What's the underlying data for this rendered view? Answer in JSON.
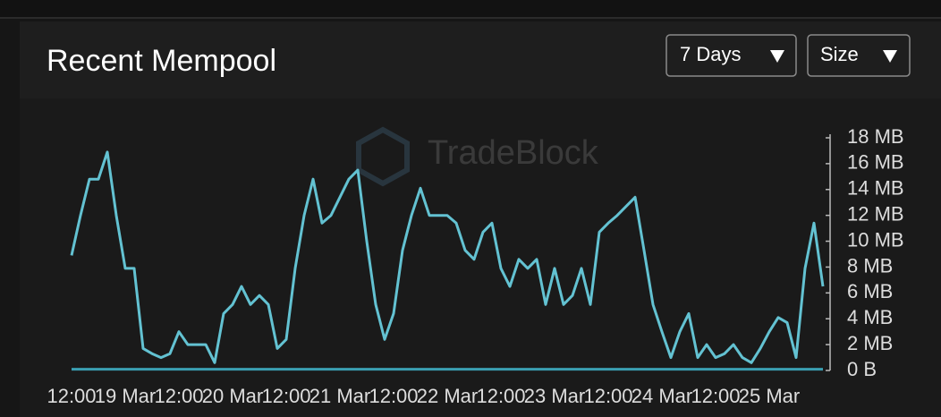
{
  "header": {
    "title": "Recent Mempool"
  },
  "controls": {
    "range": "7 Days",
    "metric": "Size"
  },
  "watermark": "TradeBlock",
  "chart_data": {
    "type": "line",
    "categories": [
      "12:00",
      null,
      null,
      null,
      null,
      null,
      "19 Mar",
      null,
      null,
      null,
      null,
      null,
      "12:00",
      null,
      null,
      null,
      null,
      null,
      "20 Mar",
      null,
      null,
      null,
      null,
      null,
      "12:00",
      null,
      null,
      null,
      null,
      null,
      "21 Mar",
      null,
      null,
      null,
      null,
      null,
      "12:00",
      null,
      null,
      null,
      null,
      null,
      "22 Mar",
      null,
      null,
      null,
      null,
      null,
      "12:00",
      null,
      null,
      null,
      null,
      null,
      "23 Mar",
      null,
      null,
      null,
      null,
      null,
      "12:00",
      null,
      null,
      null,
      null,
      null,
      "24 Mar",
      null,
      null,
      null,
      null,
      null,
      "12:00",
      null,
      null,
      null,
      null,
      null,
      "25 Mar",
      null,
      null,
      null,
      null,
      null,
      null
    ],
    "series": [
      {
        "color": "#63c2d2",
        "values": [
          8.9,
          12,
          14.8,
          14.8,
          16.9,
          12,
          7.9,
          7.9,
          1.7,
          1.3,
          1,
          1.3,
          3,
          2,
          2,
          2,
          0.6,
          4.4,
          5.1,
          6.5,
          5.1,
          5.8,
          5.1,
          1.7,
          2.4,
          7.9,
          12,
          14.8,
          11.4,
          12,
          13.4,
          14.8,
          15.5,
          10,
          5.1,
          2.4,
          4.4,
          9.3,
          12,
          14.1,
          12,
          12,
          12,
          11.4,
          9.3,
          8.6,
          10.7,
          11.4,
          7.9,
          6.5,
          8.6,
          7.9,
          8.6,
          5.1,
          7.9,
          5.1,
          5.8,
          7.9,
          5.1,
          10.7,
          11.4,
          12,
          12.7,
          13.4,
          9.3,
          5.1,
          3,
          1,
          3,
          4.4,
          1,
          2,
          1,
          1.3,
          2,
          1,
          0.6,
          1.7,
          3,
          4.1,
          3.7,
          1,
          7.9,
          11.4,
          6.5
        ]
      },
      {
        "color": "#3a9fb2",
        "values": [
          0.1,
          0.1,
          0.1,
          0.1,
          0.1,
          0.1,
          0.1,
          0.1,
          0.1,
          0.1,
          0.1,
          0.1,
          0.1,
          0.1,
          0.1,
          0.1,
          0.1,
          0.1,
          0.1,
          0.1,
          0.1,
          0.1,
          0.1,
          0.1,
          0.1,
          0.1,
          0.1,
          0.1,
          0.1,
          0.1,
          0.1,
          0.1,
          0.1,
          0.1,
          0.1,
          0.1,
          0.1,
          0.1,
          0.1,
          0.1,
          0.1,
          0.1,
          0.1,
          0.1,
          0.1,
          0.1,
          0.1,
          0.1,
          0.1,
          0.1,
          0.1,
          0.1,
          0.1,
          0.1,
          0.1,
          0.1,
          0.1,
          0.1,
          0.1,
          0.1,
          0.1,
          0.1,
          0.1,
          0.1,
          0.1,
          0.1,
          0.1,
          0.1,
          0.1,
          0.1,
          0.1,
          0.1,
          0.1,
          0.1,
          0.1,
          0.1,
          0.1,
          0.1,
          0.1,
          0.1,
          0.1,
          0.1,
          0.1,
          0.1,
          0.1
        ]
      }
    ],
    "ylim": [
      0,
      18
    ],
    "yticks": [
      {
        "value": 0,
        "label": "0 B"
      },
      {
        "value": 2,
        "label": "2 MB"
      },
      {
        "value": 4,
        "label": "4 MB"
      },
      {
        "value": 6,
        "label": "6 MB"
      },
      {
        "value": 8,
        "label": "8 MB"
      },
      {
        "value": 10,
        "label": "10 MB"
      },
      {
        "value": 12,
        "label": "12 MB"
      },
      {
        "value": 14,
        "label": "14 MB"
      },
      {
        "value": 16,
        "label": "16 MB"
      },
      {
        "value": 18,
        "label": "18 MB"
      }
    ],
    "grid": false
  }
}
